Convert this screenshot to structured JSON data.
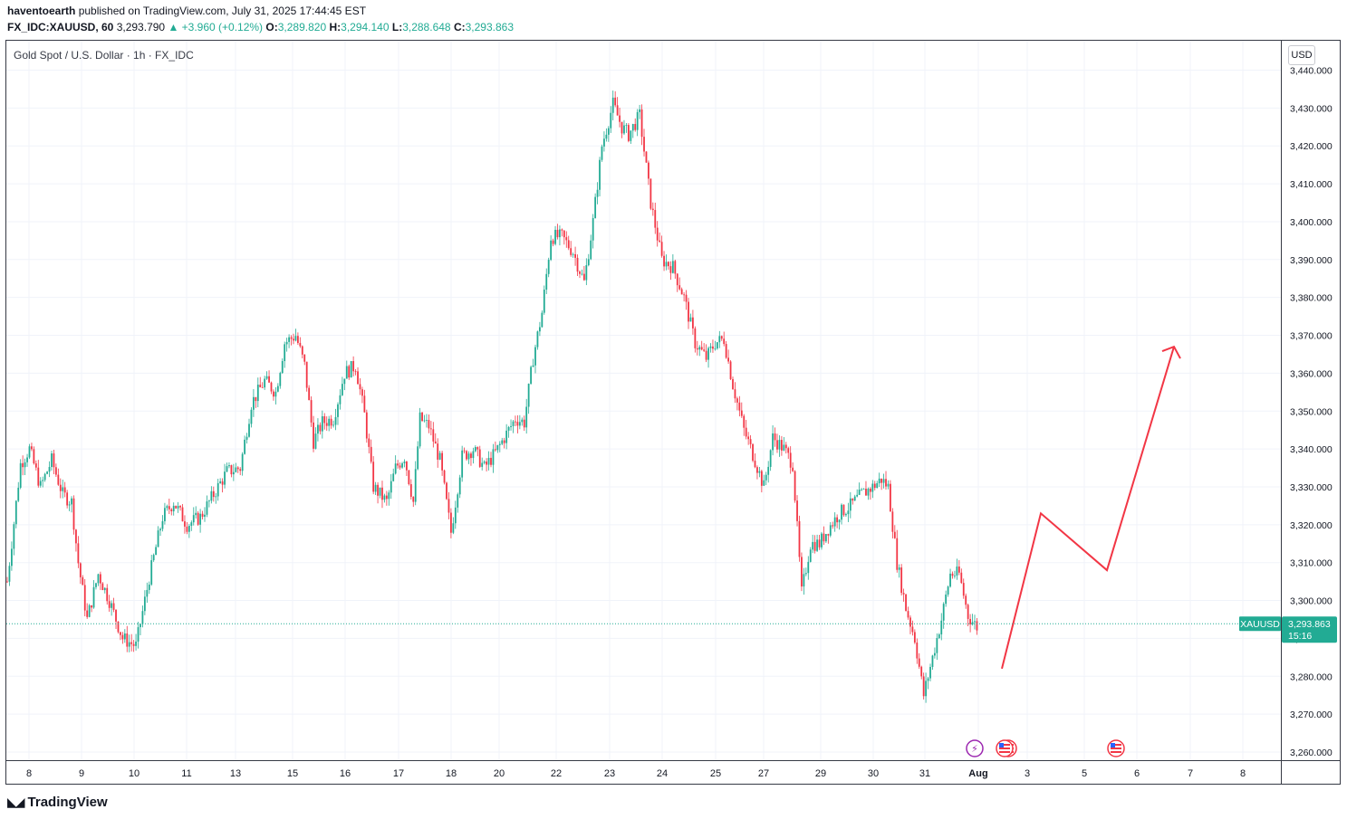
{
  "header": {
    "author": "haventoearth",
    "published_text": "published on TradingView.com, July 31, 2025 17:44:45 EST",
    "symbol_line": "FX_IDC:XAUUSD, 60",
    "last": "3,293.790",
    "change": "▲ +3.960 (+0.12%)",
    "o_label": "O:",
    "o_val": "3,289.820",
    "h_label": "H:",
    "h_val": "3,294.140",
    "l_label": "L:",
    "l_val": "3,288.648",
    "c_label": "C:",
    "c_val": "3,293.863"
  },
  "chart_title": "Gold Spot / U.S. Dollar · 1h · FX_IDC",
  "currency_button": "USD",
  "branding": {
    "text": "TradingView",
    "icon": "tradingview-logo-icon"
  },
  "colors": {
    "up": "#22ab94",
    "down": "#f23645",
    "projection": "#f23645",
    "grid": "#f0f3fa",
    "price_tag": "#22ab94"
  },
  "chart_data": {
    "type": "candlestick",
    "title": "Gold Spot / U.S. Dollar · 1h · FX_IDC",
    "ylim": [
      3258,
      3443
    ],
    "y_ticks": [
      "3,260.000",
      "3,270.000",
      "3,280.000",
      "3,290.000",
      "3,300.000",
      "3,310.000",
      "3,320.000",
      "3,330.000",
      "3,340.000",
      "3,350.000",
      "3,360.000",
      "3,370.000",
      "3,380.000",
      "3,390.000",
      "3,400.000",
      "3,410.000",
      "3,420.000",
      "3,430.000",
      "3,440.000"
    ],
    "x_ticks": [
      "8",
      "9",
      "10",
      "11",
      "13",
      "15",
      "16",
      "17",
      "18",
      "20",
      "22",
      "23",
      "24",
      "25",
      "27",
      "29",
      "30",
      "31",
      "Aug",
      "3",
      "5",
      "6",
      "7",
      "8"
    ],
    "grid": true,
    "current_price": {
      "symbol": "XAUUSD",
      "value": "3,293.863",
      "countdown": "15:16",
      "price": 3293.863
    },
    "price_path": [
      [
        0,
        3305
      ],
      [
        6,
        3336
      ],
      [
        10,
        3340
      ],
      [
        15,
        3330
      ],
      [
        20,
        3337
      ],
      [
        25,
        3328
      ],
      [
        29,
        3326
      ],
      [
        32,
        3310
      ],
      [
        36,
        3295
      ],
      [
        41,
        3307
      ],
      [
        46,
        3300
      ],
      [
        52,
        3290
      ],
      [
        58,
        3288
      ],
      [
        64,
        3306
      ],
      [
        70,
        3322
      ],
      [
        75,
        3326
      ],
      [
        81,
        3320
      ],
      [
        87,
        3322
      ],
      [
        93,
        3328
      ],
      [
        99,
        3334
      ],
      [
        105,
        3335
      ],
      [
        110,
        3352
      ],
      [
        116,
        3358
      ],
      [
        121,
        3355
      ],
      [
        125,
        3368
      ],
      [
        130,
        3370
      ],
      [
        134,
        3362
      ],
      [
        138,
        3342
      ],
      [
        142,
        3347
      ],
      [
        147,
        3348
      ],
      [
        152,
        3360
      ],
      [
        157,
        3362
      ],
      [
        161,
        3349
      ],
      [
        165,
        3330
      ],
      [
        171,
        3326
      ],
      [
        175,
        3335
      ],
      [
        179,
        3338
      ],
      [
        183,
        3326
      ],
      [
        186,
        3348
      ],
      [
        190,
        3346
      ],
      [
        195,
        3337
      ],
      [
        200,
        3318
      ],
      [
        205,
        3338
      ],
      [
        210,
        3340
      ],
      [
        215,
        3335
      ],
      [
        220,
        3339
      ],
      [
        225,
        3344
      ],
      [
        229,
        3348
      ],
      [
        233,
        3347
      ],
      [
        237,
        3364
      ],
      [
        241,
        3376
      ],
      [
        245,
        3396
      ],
      [
        250,
        3396
      ],
      [
        255,
        3392
      ],
      [
        260,
        3384
      ],
      [
        264,
        3400
      ],
      [
        268,
        3420
      ],
      [
        273,
        3431
      ],
      [
        277,
        3425
      ],
      [
        280,
        3423
      ],
      [
        285,
        3428
      ],
      [
        290,
        3405
      ],
      [
        295,
        3390
      ],
      [
        300,
        3388
      ],
      [
        305,
        3380
      ],
      [
        310,
        3368
      ],
      [
        315,
        3364
      ],
      [
        319,
        3368
      ],
      [
        323,
        3369
      ],
      [
        327,
        3357
      ],
      [
        332,
        3345
      ],
      [
        337,
        3337
      ],
      [
        341,
        3330
      ],
      [
        345,
        3343
      ],
      [
        350,
        3340
      ],
      [
        354,
        3336
      ],
      [
        358,
        3302
      ],
      [
        362,
        3315
      ],
      [
        366,
        3315
      ],
      [
        370,
        3319
      ],
      [
        375,
        3323
      ],
      [
        380,
        3325
      ],
      [
        385,
        3328
      ],
      [
        390,
        3330
      ],
      [
        394,
        3332
      ],
      [
        397,
        3330
      ],
      [
        401,
        3310
      ],
      [
        405,
        3298
      ],
      [
        409,
        3290
      ],
      [
        413,
        3275
      ],
      [
        417,
        3285
      ],
      [
        421,
        3295
      ],
      [
        425,
        3307
      ],
      [
        429,
        3307
      ],
      [
        433,
        3296
      ],
      [
        437,
        3293
      ]
    ],
    "candle_count": 437,
    "projection": {
      "color": "#f23645",
      "points": [
        [
          3282,
          0
        ],
        [
          3323,
          0
        ],
        [
          3308,
          0
        ],
        [
          3367,
          0
        ]
      ]
    }
  }
}
